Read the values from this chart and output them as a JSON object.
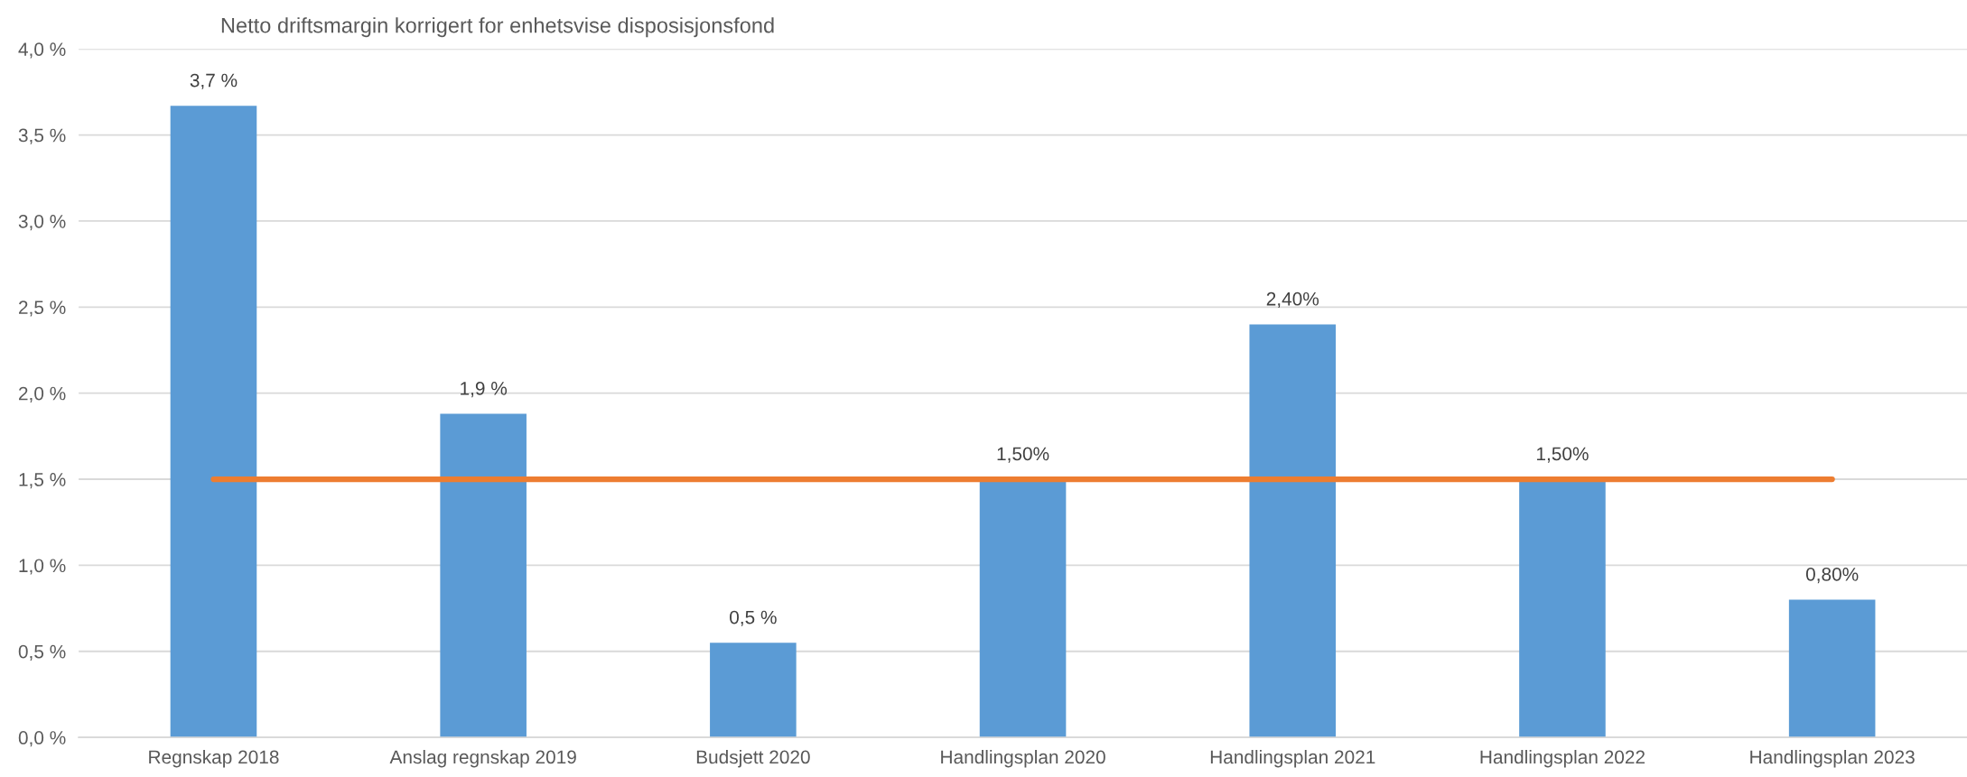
{
  "chart_data": {
    "type": "bar",
    "title": "Netto driftsmargin korrigert for enhetsvise disposisjonsfond",
    "categories": [
      "Regnskap 2018",
      "Anslag regnskap 2019",
      "Budsjett 2020",
      "Handlingsplan 2020",
      "Handlingsplan 2021",
      "Handlingsplan 2022",
      "Handlingsplan 2023"
    ],
    "series": [
      {
        "color": "#5b9bd5",
        "values": [
          3.67,
          1.88,
          0.55,
          1.5,
          2.4,
          1.5,
          0.8
        ],
        "value_labels": [
          "3,7 %",
          "1,9 %",
          "0,5 %",
          "1,50%",
          "2,40%",
          "1,50%",
          "0,80%"
        ]
      },
      {
        "type": "line",
        "color": "#ed7d31",
        "values": [
          1.5,
          1.5,
          1.5,
          1.5,
          1.5,
          1.5,
          1.5
        ]
      }
    ],
    "ylim": [
      0,
      4
    ],
    "yticks": [
      {
        "value": 0,
        "label": "0,0 %"
      },
      {
        "value": 0.5,
        "label": "0,5 %"
      },
      {
        "value": 1,
        "label": "1,0 %"
      },
      {
        "value": 1.5,
        "label": "1,5 %"
      },
      {
        "value": 2,
        "label": "2,0 %"
      },
      {
        "value": 2.5,
        "label": "2,5 %"
      },
      {
        "value": 3,
        "label": "3,0 %"
      },
      {
        "value": 3.5,
        "label": "3,5 %"
      },
      {
        "value": 4,
        "label": "4,0 %"
      }
    ],
    "grid": "y",
    "legend": false
  }
}
